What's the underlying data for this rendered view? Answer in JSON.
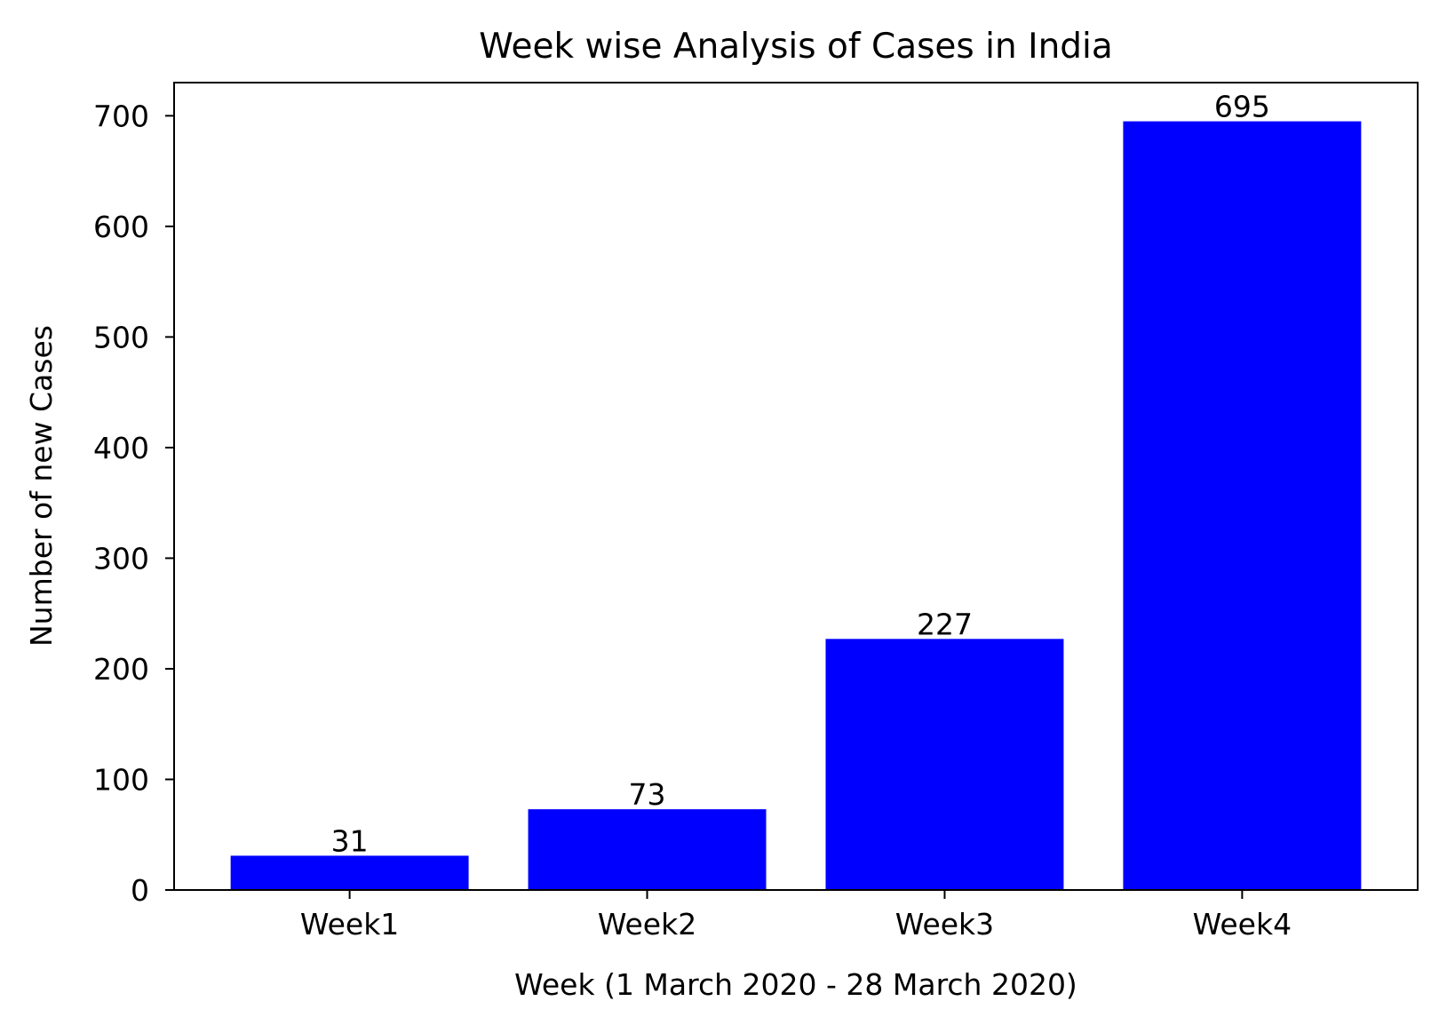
{
  "chart_data": {
    "type": "bar",
    "title": "Week wise Analysis of Cases in India",
    "xlabel": "Week (1 March 2020 - 28 March 2020)",
    "ylabel": "Number of new Cases",
    "categories": [
      "Week1",
      "Week2",
      "Week3",
      "Week4"
    ],
    "values": [
      31,
      73,
      227,
      695
    ],
    "data_labels": [
      "31",
      "73",
      "227",
      "695"
    ],
    "ylim": [
      0,
      730
    ],
    "yticks": [
      0,
      100,
      200,
      300,
      400,
      500,
      600,
      700
    ],
    "ytick_labels": [
      "0",
      "100",
      "200",
      "300",
      "400",
      "500",
      "600",
      "700"
    ],
    "bar_color": "#0000ff",
    "grid": false,
    "legend": "none"
  }
}
